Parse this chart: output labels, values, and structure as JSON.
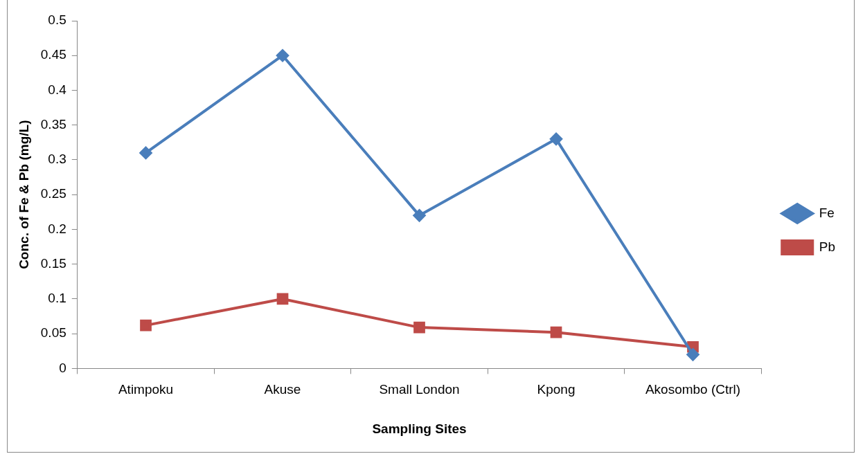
{
  "chart_data": {
    "type": "line",
    "xlabel": "Sampling Sites",
    "ylabel": "Conc. of Fe & Pb (mg/L)",
    "categories": [
      "Atimpoku",
      "Akuse",
      "Small London",
      "Kpong",
      "Akosombo (Ctrl)"
    ],
    "series": [
      {
        "name": "Fe",
        "color": "#4a7ebb",
        "marker": "diamond",
        "values": [
          0.31,
          0.45,
          0.22,
          0.33,
          0.02
        ]
      },
      {
        "name": "Pb",
        "color": "#be4b48",
        "marker": "square",
        "values": [
          0.062,
          0.1,
          0.059,
          0.052,
          0.031
        ]
      }
    ],
    "ylim": [
      0,
      0.5
    ],
    "yticks": [
      0,
      0.05,
      0.1,
      0.15,
      0.2,
      0.25,
      0.3,
      0.35,
      0.4,
      0.45,
      0.5
    ],
    "grid": false,
    "legend": "right",
    "line_style": "solid"
  }
}
